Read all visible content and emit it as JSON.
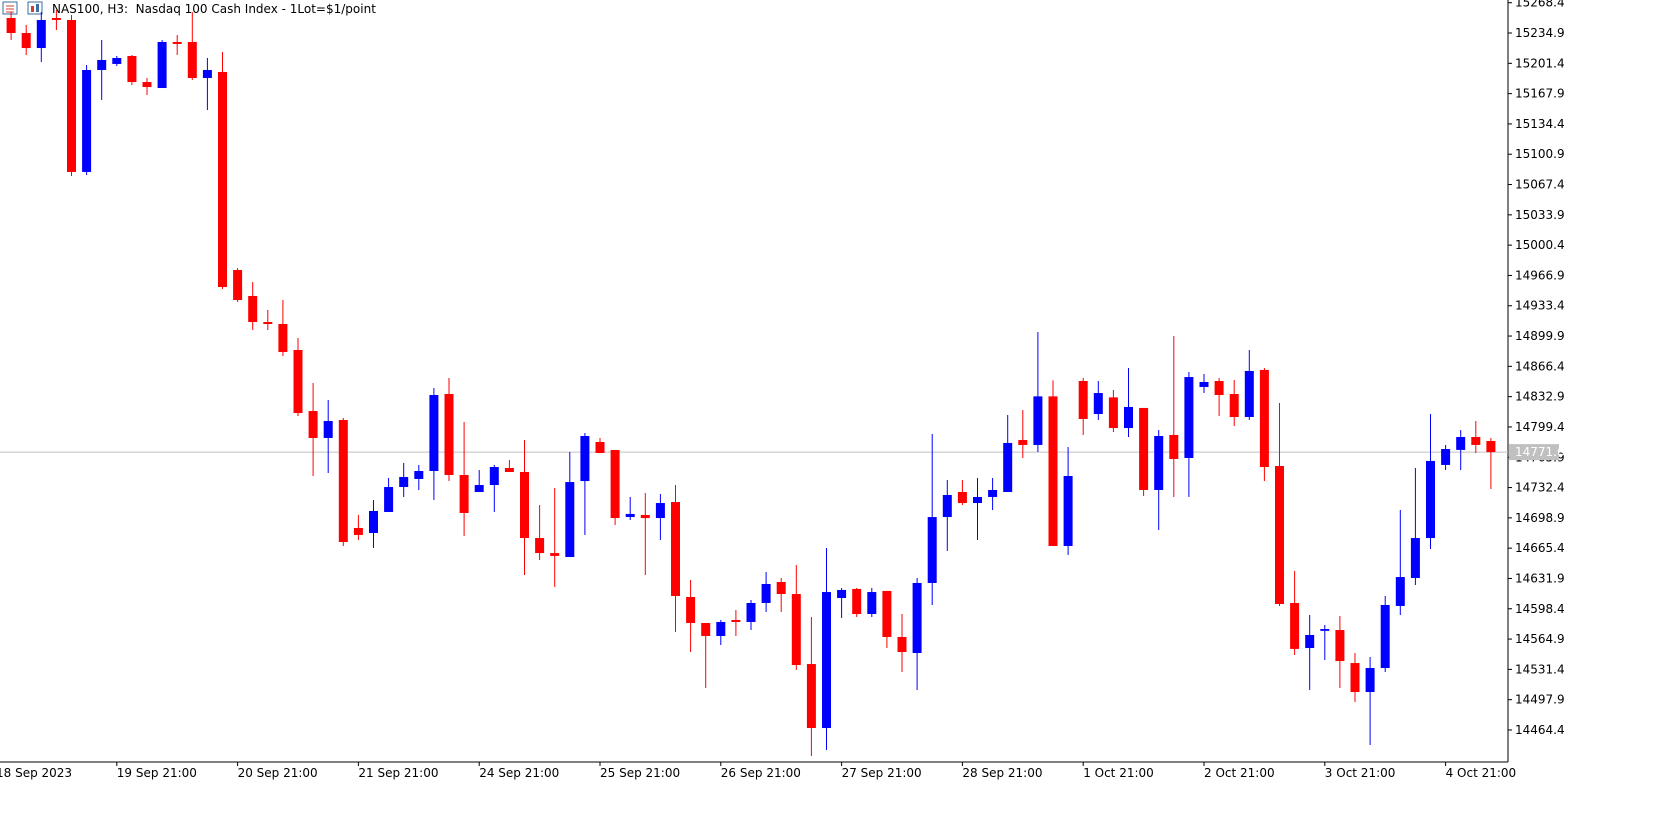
{
  "chart_data": {
    "type": "candlestick",
    "title": "NAS100, H3:  Nasdaq 100 Cash Index - 1Lot=$1/point",
    "categories": [
      "18 Sep 2023",
      null,
      null,
      null,
      null,
      null,
      null,
      null,
      "19 Sep 21:00",
      null,
      null,
      null,
      null,
      null,
      null,
      null,
      "20 Sep 21:00",
      null,
      null,
      null,
      null,
      null,
      null,
      null,
      "21 Sep 21:00",
      null,
      null,
      null,
      null,
      null,
      null,
      null,
      "24 Sep 21:00",
      null,
      null,
      null,
      null,
      null,
      null,
      null,
      "25 Sep 21:00",
      null,
      null,
      null,
      null,
      null,
      null,
      null,
      "26 Sep 21:00",
      null,
      null,
      null,
      null,
      null,
      null,
      null,
      "27 Sep 21:00",
      null,
      null,
      null,
      null,
      null,
      null,
      null,
      "28 Sep 21:00",
      null,
      null,
      null,
      null,
      null,
      null,
      null,
      "1 Oct 21:00",
      null,
      null,
      null,
      null,
      null,
      null,
      null,
      "2 Oct 21:00",
      null,
      null,
      null,
      null,
      null,
      null,
      null,
      "3 Oct 21:00",
      null,
      null,
      null,
      null,
      null,
      null,
      null,
      "4 Oct 21:00",
      null,
      null,
      null
    ],
    "open": [
      null,
      15251.5,
      15234.9,
      15218.3,
      15251.5,
      15249.3,
      15081.3,
      15194.0,
      15200.7,
      15209.5,
      15180.7,
      15174.1,
      15225.0,
      15225.0,
      15185.2,
      15191.8,
      14972.9,
      14944.2,
      14915.4,
      14913.2,
      14884.5,
      14817.0,
      14787.2,
      14807.1,
      14687.7,
      14682.2,
      14705.4,
      14733.0,
      14741.9,
      14750.7,
      14835.8,
      14746.3,
      14727.5,
      14735.2,
      14754.0,
      14749.6,
      14676.6,
      14660.0,
      14655.6,
      14739.6,
      14782.8,
      14773.9,
      14699.8,
      14702.1,
      14698.7,
      14716.4,
      14611.4,
      14582.7,
      14568.3,
      14586.0,
      14583.8,
      14604.8,
      14628.0,
      14614.7,
      14537.3,
      14466.6,
      14610.3,
      14620.3,
      14592.6,
      14618.1,
      14567.2,
      14549.5,
      14626.9,
      14699.8,
      14727.5,
      14715.3,
      14722.0,
      14727.5,
      14785.0,
      14779.5,
      14833.2,
      14667.8,
      14850.2,
      14813.7,
      14832.1,
      14798.2,
      14820.4,
      14729.7,
      14790.5,
      14765.1,
      14843.6,
      14850.2,
      14835.8,
      14810.4,
      14862.4,
      14756.2,
      14604.8,
      14555.0,
      14574.0,
      14574.9,
      14538.4,
      14506.4,
      14532.9,
      14601.5,
      14632.4,
      14676.6,
      14757.4,
      14774.0,
      14788.3,
      14783.9
    ],
    "high": [
      null,
      15258.1,
      15243.8,
      15258.1,
      15260.3,
      15254.8,
      15199.5,
      15227.2,
      15209.5,
      15210.6,
      15185.2,
      15227.2,
      15232.7,
      15258.1,
      15207.3,
      15213.9,
      14975.1,
      14959.6,
      14928.7,
      14939.7,
      14897.7,
      14848.0,
      14829.2,
      14809.3,
      14702.1,
      14718.7,
      14743.0,
      14759.6,
      14757.4,
      14842.5,
      14853.5,
      14804.9,
      14751.8,
      14757.4,
      14762.9,
      14785.0,
      14713.1,
      14731.9,
      14771.7,
      14792.7,
      14787.2,
      14773.9,
      14722.0,
      14726.4,
      14725.3,
      14735.2,
      14630.2,
      14582.7,
      14586.0,
      14597.0,
      14608.1,
      14639.1,
      14632.4,
      14646.8,
      14589.3,
      14665.6,
      14621.4,
      14621.4,
      14621.4,
      14618.1,
      14592.6,
      14632.4,
      14791.6,
      14740.8,
      14740.8,
      14743.0,
      14743.0,
      14812.6,
      14818.1,
      14904.4,
      14850.9,
      14777.2,
      14853.5,
      14850.2,
      14840.3,
      14864.6,
      14820.4,
      14796.0,
      14899.9,
      14860.1,
      14857.9,
      14853.5,
      14851.3,
      14884.5,
      14864.6,
      14825.9,
      14640.2,
      14591.5,
      14580.5,
      14590.4,
      14549.5,
      14545.1,
      14612.5,
      14707.6,
      14754.0,
      14813.7,
      14779.5,
      14796.0,
      14806.0,
      14787.2
    ],
    "low": [
      null,
      15227.2,
      15210.6,
      15202.9,
      15238.2,
      15076.8,
      15077.9,
      15160.9,
      15198.4,
      15177.4,
      15166.4,
      15174.1,
      15210.6,
      15183.0,
      15149.8,
      14951.9,
      14937.5,
      14906.6,
      14906.6,
      14877.8,
      14811.5,
      14745.2,
      14748.5,
      14667.8,
      14674.4,
      14665.6,
      14705.4,
      14722.0,
      14729.7,
      14718.7,
      14739.6,
      14678.8,
      14727.5,
      14705.4,
      14749.6,
      14635.7,
      14652.3,
      14622.5,
      14655.6,
      14680.0,
      14770.6,
      14691.0,
      14696.5,
      14635.7,
      14674.4,
      14572.7,
      14550.6,
      14510.8,
      14558.3,
      14568.3,
      14574.9,
      14594.8,
      14594.8,
      14530.7,
      14435.6,
      14442.3,
      14588.2,
      14589.3,
      14589.3,
      14555.0,
      14528.5,
      14508.6,
      14602.6,
      14662.3,
      14713.1,
      14674.4,
      14707.6,
      14727.5,
      14765.1,
      14771.7,
      14667.8,
      14657.9,
      14790.5,
      14807.1,
      14793.8,
      14788.3,
      14723.1,
      14685.5,
      14722.0,
      14722.0,
      14836.9,
      14811.5,
      14800.4,
      14807.1,
      14739.6,
      14601.5,
      14547.3,
      14508.6,
      14541.8,
      14510.8,
      14495.3,
      14447.8,
      14528.5,
      14591.5,
      14624.7,
      14664.5,
      14751.8,
      14751.8,
      14770.6,
      14730.8
    ],
    "close": [
      null,
      15234.9,
      15218.3,
      15249.3,
      15249.3,
      15081.3,
      15194.0,
      15205.1,
      15207.3,
      15180.7,
      15175.2,
      15225.0,
      15222.8,
      15185.2,
      15194.0,
      14954.1,
      14939.7,
      14915.4,
      14913.2,
      14882.3,
      14814.8,
      14787.2,
      14806.0,
      14672.2,
      14680.0,
      14706.5,
      14733.0,
      14744.1,
      14750.7,
      14834.7,
      14746.3,
      14704.3,
      14735.2,
      14755.1,
      14749.6,
      14676.6,
      14660.0,
      14656.8,
      14738.5,
      14789.4,
      14770.6,
      14698.7,
      14703.2,
      14698.7,
      14715.3,
      14612.5,
      14582.7,
      14568.3,
      14583.8,
      14583.8,
      14604.8,
      14625.8,
      14614.7,
      14536.2,
      14466.6,
      14616.9,
      14619.2,
      14592.6,
      14616.9,
      14567.2,
      14550.6,
      14626.9,
      14699.8,
      14724.2,
      14715.3,
      14722.0,
      14729.7,
      14781.7,
      14779.5,
      14833.2,
      14667.8,
      14745.2,
      14808.2,
      14836.9,
      14798.2,
      14821.5,
      14729.7,
      14789.4,
      14764.0,
      14854.6,
      14849.1,
      14834.7,
      14810.4,
      14861.3,
      14755.1,
      14603.7,
      14554.0,
      14569.4,
      14576.0,
      14540.6,
      14506.4,
      14532.9,
      14602.6,
      14633.5,
      14676.6,
      14761.8,
      14775.0,
      14788.3,
      14779.5,
      14771.6
    ],
    "up_color": "#0000ff",
    "down_color": "#ff0000",
    "last_price": 14771.6,
    "ylim": [
      14429.0,
      15271.4
    ],
    "yticks": [
      15268.4,
      15234.9,
      15201.4,
      15167.9,
      15134.4,
      15100.9,
      15067.4,
      15033.9,
      15000.4,
      14966.9,
      14933.4,
      14899.9,
      14866.4,
      14832.9,
      14799.4,
      14765.9,
      14732.4,
      14698.9,
      14665.4,
      14631.9,
      14598.4,
      14564.9,
      14531.4,
      14497.9,
      14464.4
    ],
    "grid": false
  }
}
